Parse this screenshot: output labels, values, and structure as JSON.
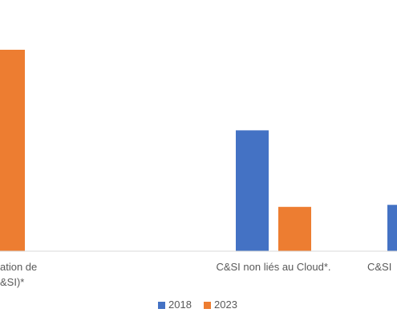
{
  "chart_data": {
    "type": "bar",
    "categories": [
      [
        "ation de",
        "&SI)*"
      ],
      [
        "C&SI non liés au Cloud*."
      ],
      [
        "C&SI"
      ]
    ],
    "series": [
      {
        "name": "2018",
        "color": "#4472C4",
        "values": [
          null,
          60,
          23
        ]
      },
      {
        "name": "2023",
        "color": "#ED7D31",
        "values": [
          100,
          22,
          null
        ]
      }
    ],
    "ylim": [
      0,
      100
    ],
    "grid": false,
    "legend": "bottom"
  }
}
